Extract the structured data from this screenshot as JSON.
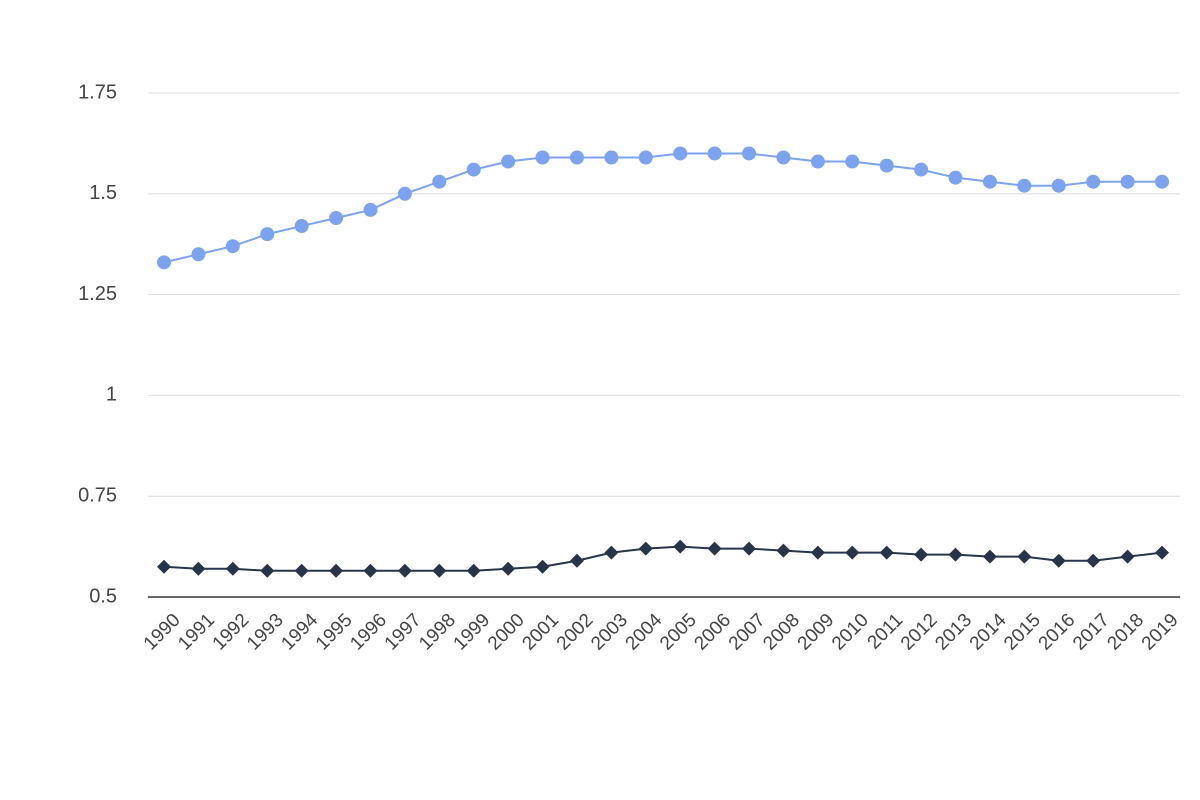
{
  "chart_data": {
    "type": "line",
    "categories": [
      "1990",
      "1991",
      "1992",
      "1993",
      "1994",
      "1995",
      "1996",
      "1997",
      "1998",
      "1999",
      "2000",
      "2001",
      "2002",
      "2003",
      "2004",
      "2005",
      "2006",
      "2007",
      "2008",
      "2009",
      "2010",
      "2011",
      "2012",
      "2013",
      "2014",
      "2015",
      "2016",
      "2017",
      "2018",
      "2019"
    ],
    "series": [
      {
        "color": "#7ba3f0",
        "marker": "circle",
        "values": [
          1.33,
          1.35,
          1.37,
          1.4,
          1.42,
          1.44,
          1.46,
          1.5,
          1.53,
          1.56,
          1.58,
          1.59,
          1.59,
          1.59,
          1.59,
          1.6,
          1.6,
          1.6,
          1.59,
          1.58,
          1.58,
          1.57,
          1.56,
          1.54,
          1.53,
          1.52,
          1.52,
          1.53,
          1.53,
          1.53
        ]
      },
      {
        "color": "#26354a",
        "marker": "diamond",
        "values": [
          0.575,
          0.57,
          0.57,
          0.565,
          0.565,
          0.565,
          0.565,
          0.565,
          0.565,
          0.565,
          0.57,
          0.575,
          0.59,
          0.61,
          0.62,
          0.625,
          0.62,
          0.62,
          0.615,
          0.61,
          0.61,
          0.61,
          0.605,
          0.605,
          0.6,
          0.6,
          0.59,
          0.59,
          0.6,
          0.61
        ]
      }
    ],
    "ylim": [
      0.5,
      1.75
    ],
    "yticks": [
      0.5,
      0.75,
      1,
      1.25,
      1.5,
      1.75
    ],
    "grid": true
  }
}
